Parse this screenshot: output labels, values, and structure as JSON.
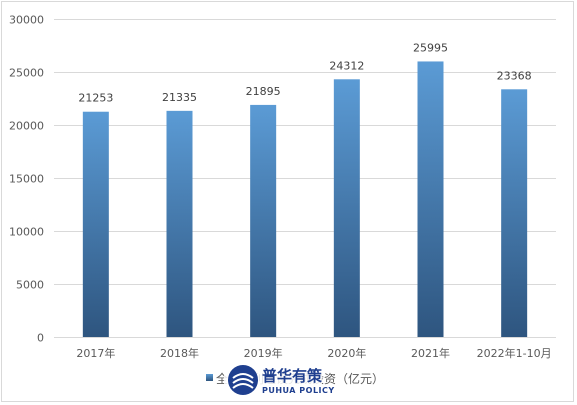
{
  "chart_data": {
    "type": "bar",
    "categories": [
      "2017年",
      "2018年",
      "2019年",
      "2020年",
      "2021年",
      "2022年1-10月"
    ],
    "series": [
      {
        "name": "全国水利建设完成投资（亿元）",
        "values": [
          21253,
          21335,
          21895,
          24312,
          25995,
          23368
        ]
      }
    ],
    "data_labels": [
      "21253",
      "21335",
      "21895",
      "24312",
      "25995",
      "23368"
    ],
    "ylim": [
      0,
      30000
    ],
    "yticks": [
      0,
      5000,
      10000,
      15000,
      20000,
      25000,
      30000
    ],
    "ytick_labels": [
      "0",
      "5000",
      "10000",
      "15000",
      "20000",
      "25000",
      "30000"
    ],
    "grid": true,
    "legend_position": "bottom",
    "bar_color_top": "#5b9bd5",
    "bar_color_bottom": "#2e557f",
    "axis_color": "#d9d9d9"
  },
  "watermark": {
    "title": "普华有策",
    "subtitle": "PUHUA POLICY",
    "color": "#1f3f8f"
  }
}
